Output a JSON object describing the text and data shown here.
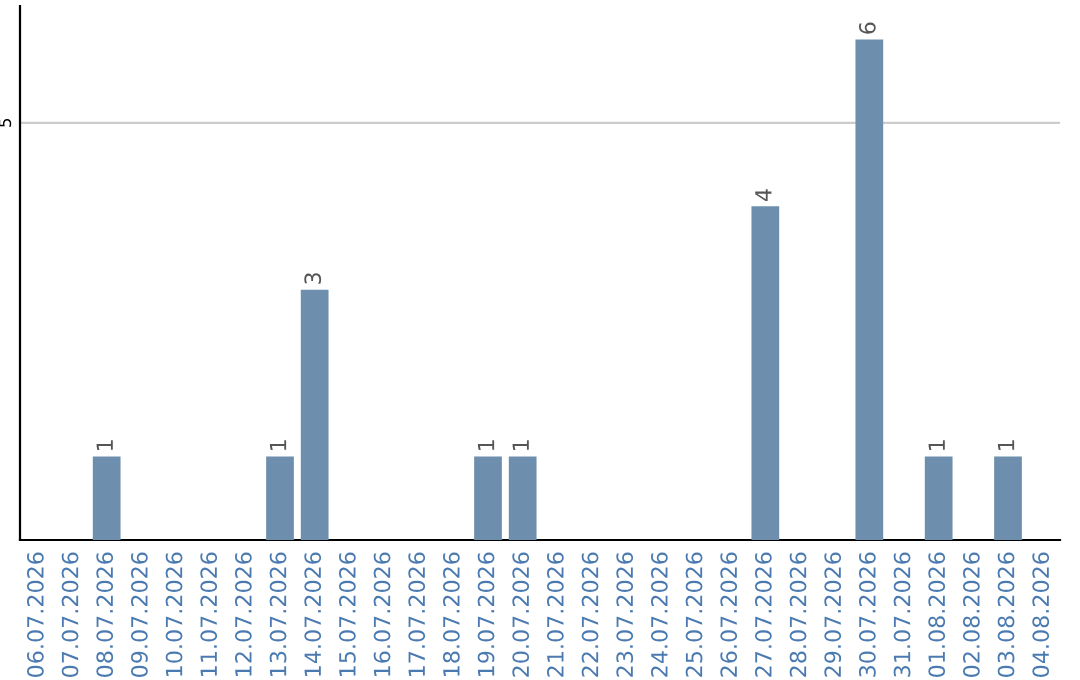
{
  "chart_data": {
    "type": "bar",
    "categories": [
      "06.07.2026",
      "07.07.2026",
      "08.07.2026",
      "09.07.2026",
      "10.07.2026",
      "11.07.2026",
      "12.07.2026",
      "13.07.2026",
      "14.07.2026",
      "15.07.2026",
      "16.07.2026",
      "17.07.2026",
      "18.07.2026",
      "19.07.2026",
      "20.07.2026",
      "21.07.2026",
      "22.07.2026",
      "23.07.2026",
      "24.07.2026",
      "25.07.2026",
      "26.07.2026",
      "27.07.2026",
      "28.07.2026",
      "29.07.2026",
      "30.07.2026",
      "31.07.2026",
      "01.08.2026",
      "02.08.2026",
      "03.08.2026",
      "04.08.2026"
    ],
    "values": [
      0,
      0,
      1,
      0,
      0,
      0,
      0,
      1,
      3,
      0,
      0,
      0,
      0,
      1,
      1,
      0,
      0,
      0,
      0,
      0,
      0,
      4,
      0,
      0,
      6,
      0,
      1,
      0,
      1,
      0
    ],
    "value_labels": [
      null,
      null,
      "1",
      null,
      null,
      null,
      null,
      "1",
      "3",
      null,
      null,
      null,
      null,
      "1",
      "1",
      null,
      null,
      null,
      null,
      null,
      null,
      "4",
      null,
      null,
      "6",
      null,
      "1",
      null,
      "1",
      null
    ],
    "color": "#6d8fad",
    "ylim": [
      0,
      6.4
    ],
    "yticks": [
      5
    ],
    "grid": "y"
  }
}
